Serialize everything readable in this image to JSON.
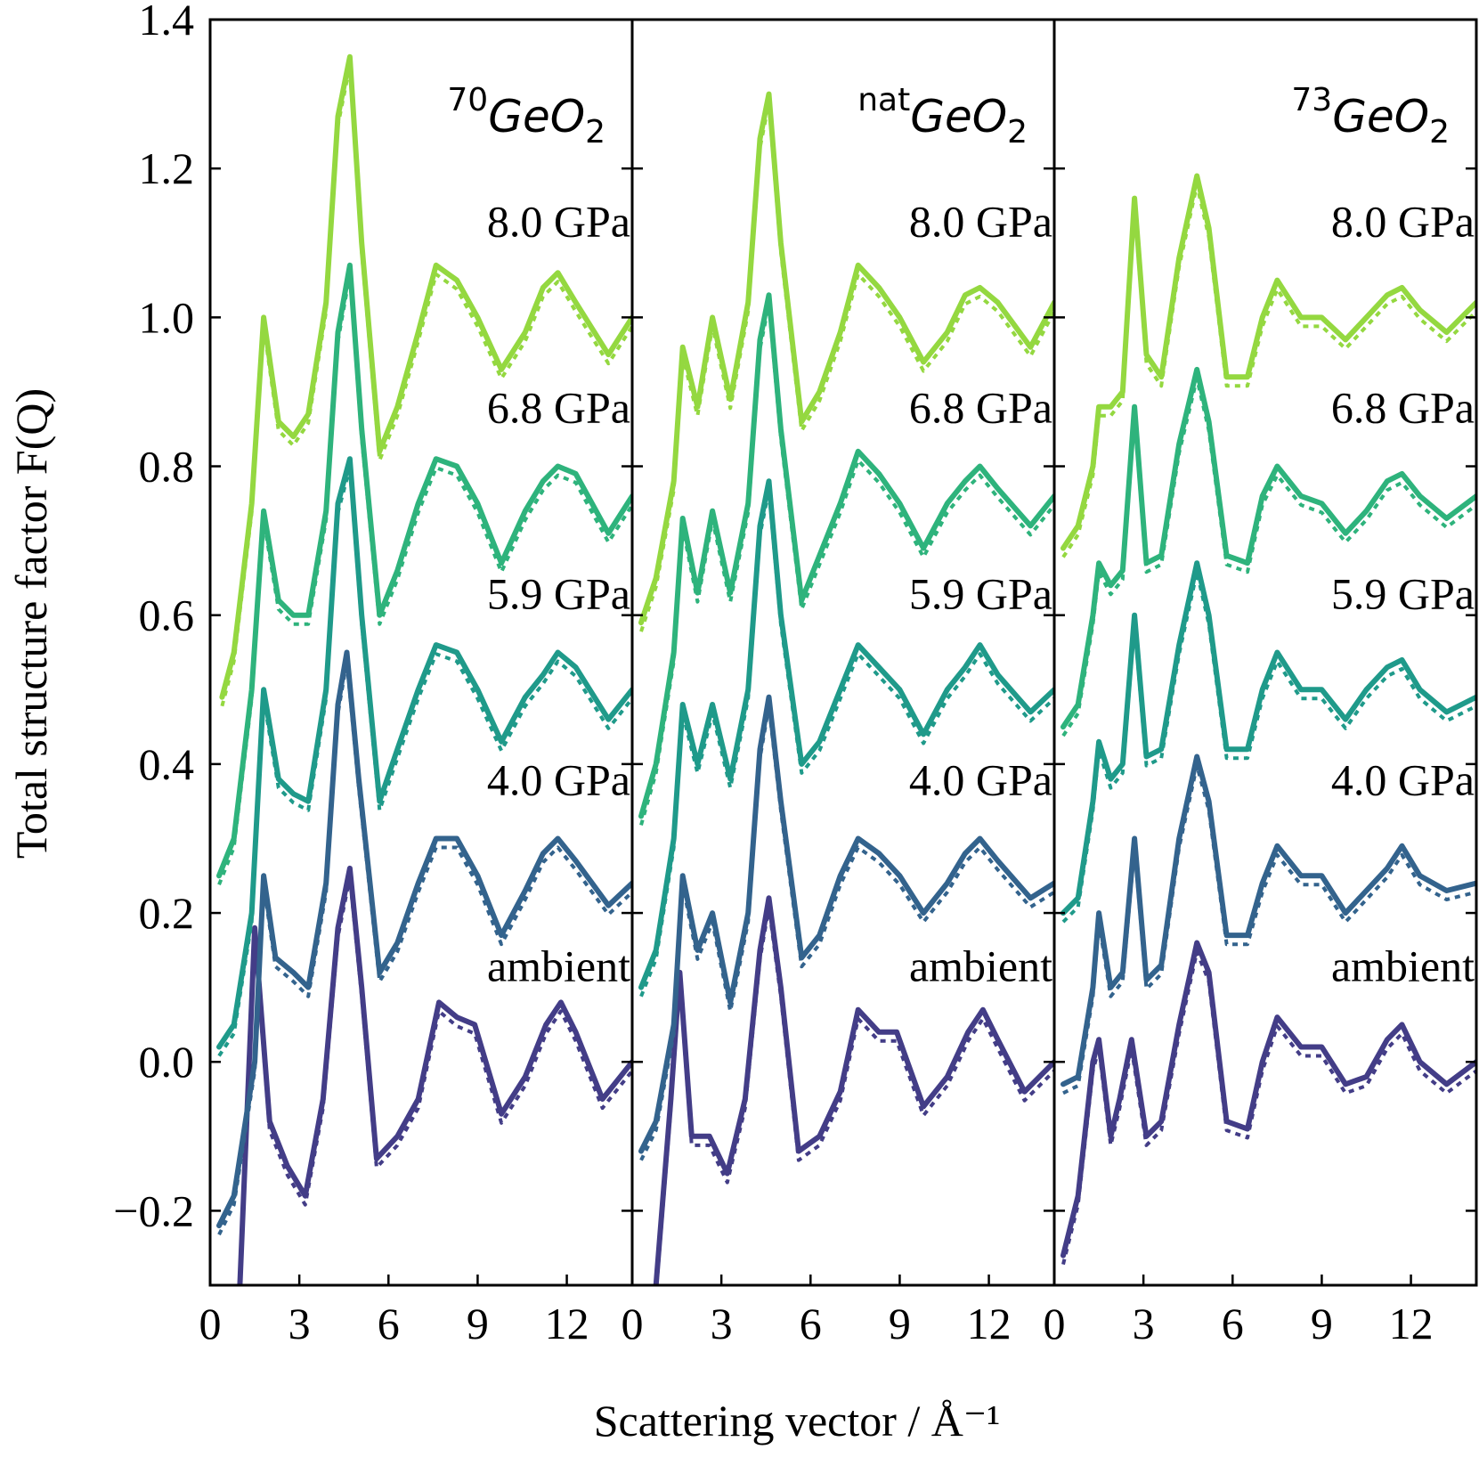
{
  "chart_data": {
    "type": "line",
    "ylabel": "Total structure factor F(Q)",
    "xlabel": "Scattering vector / Å⁻¹",
    "ylim": [
      -0.3,
      1.4
    ],
    "xlim": [
      0,
      14.2
    ],
    "y_ticks": [
      "−0.2",
      "0.0",
      "0.2",
      "0.4",
      "0.6",
      "0.8",
      "1.0",
      "1.2",
      "1.4"
    ],
    "x_ticks": [
      "0",
      "3",
      "6",
      "9",
      "12"
    ],
    "line_styles": [
      "solid (measured)",
      "dotted (model)"
    ],
    "colors": {
      "ambient": "#433d87",
      "4.0 GPa": "#33638d",
      "5.9 GPa": "#1f9a8a",
      "6.8 GPa": "#2eb37c",
      "8.0 GPa": "#94d840"
    },
    "pressure_labels": [
      "8.0 GPa",
      "6.8 GPa",
      "5.9 GPa",
      "4.0 GPa",
      "ambient"
    ],
    "panels": [
      {
        "title_sup": "70",
        "title_base": "GeO",
        "title_sub": "2",
        "series": [
          {
            "name": "ambient",
            "offset": 0.0,
            "x": [
              1.0,
              1.5,
              2.0,
              2.6,
              3.2,
              3.8,
              4.3,
              4.7,
              5.1,
              5.6,
              6.3,
              7.0,
              7.7,
              8.3,
              8.9,
              9.8,
              10.6,
              11.3,
              11.8,
              12.3,
              13.2,
              14.2
            ],
            "y": [
              -0.3,
              0.18,
              -0.08,
              -0.14,
              -0.18,
              -0.05,
              0.18,
              0.26,
              0.1,
              -0.13,
              -0.1,
              -0.05,
              0.08,
              0.06,
              0.05,
              -0.07,
              -0.02,
              0.05,
              0.08,
              0.04,
              -0.05,
              0.0
            ]
          },
          {
            "name": "4.0 GPa",
            "offset": 0.0,
            "x": [
              0.3,
              0.8,
              1.5,
              1.8,
              2.2,
              2.8,
              3.3,
              3.9,
              4.3,
              4.6,
              5.0,
              5.7,
              6.3,
              7.0,
              7.6,
              8.3,
              9.0,
              9.8,
              10.6,
              11.2,
              11.7,
              12.3,
              13.4,
              14.2
            ],
            "y": [
              -0.22,
              -0.18,
              0.0,
              0.25,
              0.14,
              0.12,
              0.1,
              0.24,
              0.48,
              0.55,
              0.38,
              0.12,
              0.16,
              0.24,
              0.3,
              0.3,
              0.25,
              0.17,
              0.23,
              0.28,
              0.3,
              0.27,
              0.21,
              0.24
            ]
          },
          {
            "name": "5.9 GPa",
            "offset": 0.0,
            "x": [
              0.3,
              0.8,
              1.4,
              1.8,
              2.3,
              2.8,
              3.3,
              3.9,
              4.3,
              4.7,
              5.1,
              5.7,
              6.3,
              7.0,
              7.6,
              8.3,
              9.0,
              9.8,
              10.6,
              11.2,
              11.7,
              12.3,
              13.4,
              14.2
            ],
            "y": [
              0.02,
              0.05,
              0.2,
              0.5,
              0.38,
              0.36,
              0.35,
              0.5,
              0.75,
              0.81,
              0.6,
              0.35,
              0.42,
              0.5,
              0.56,
              0.55,
              0.5,
              0.43,
              0.49,
              0.52,
              0.55,
              0.53,
              0.46,
              0.5
            ]
          },
          {
            "name": "6.8 GPa",
            "offset": 0.0,
            "x": [
              0.3,
              0.8,
              1.4,
              1.8,
              2.3,
              2.8,
              3.3,
              3.9,
              4.3,
              4.7,
              5.1,
              5.7,
              6.3,
              7.0,
              7.6,
              8.3,
              9.0,
              9.8,
              10.6,
              11.2,
              11.7,
              12.3,
              13.4,
              14.2
            ],
            "y": [
              0.25,
              0.3,
              0.5,
              0.74,
              0.62,
              0.6,
              0.6,
              0.74,
              0.98,
              1.07,
              0.85,
              0.6,
              0.66,
              0.75,
              0.81,
              0.8,
              0.75,
              0.67,
              0.74,
              0.78,
              0.8,
              0.79,
              0.71,
              0.76
            ]
          },
          {
            "name": "8.0 GPa",
            "offset": 0.0,
            "x": [
              0.4,
              0.8,
              1.4,
              1.8,
              2.3,
              2.8,
              3.3,
              3.9,
              4.3,
              4.7,
              5.1,
              5.7,
              6.3,
              7.0,
              7.6,
              8.3,
              9.0,
              9.8,
              10.6,
              11.2,
              11.7,
              12.3,
              13.4,
              14.2
            ],
            "y": [
              0.49,
              0.55,
              0.75,
              1.0,
              0.86,
              0.84,
              0.87,
              1.02,
              1.27,
              1.35,
              1.1,
              0.82,
              0.88,
              0.98,
              1.07,
              1.05,
              1.0,
              0.93,
              0.98,
              1.04,
              1.06,
              1.02,
              0.95,
              1.0
            ]
          }
        ]
      },
      {
        "title_sup": "nat",
        "title_base": "GeO",
        "title_sub": "2",
        "series": [
          {
            "name": "ambient",
            "offset": 0.0,
            "x": [
              0.8,
              1.3,
              1.6,
              2.0,
              2.6,
              3.2,
              3.8,
              4.3,
              4.6,
              5.0,
              5.6,
              6.3,
              7.0,
              7.6,
              8.3,
              8.9,
              9.8,
              10.6,
              11.3,
              11.8,
              12.3,
              13.2,
              14.2
            ],
            "y": [
              -0.3,
              -0.05,
              0.12,
              -0.1,
              -0.1,
              -0.15,
              -0.05,
              0.15,
              0.22,
              0.1,
              -0.12,
              -0.1,
              -0.04,
              0.07,
              0.04,
              0.04,
              -0.06,
              -0.02,
              0.04,
              0.07,
              0.03,
              -0.04,
              0.0
            ]
          },
          {
            "name": "4.0 GPa",
            "offset": 0.0,
            "x": [
              0.3,
              0.8,
              1.4,
              1.7,
              2.2,
              2.7,
              3.3,
              3.9,
              4.3,
              4.6,
              5.0,
              5.7,
              6.3,
              7.0,
              7.6,
              8.3,
              9.0,
              9.8,
              10.6,
              11.2,
              11.7,
              12.3,
              13.4,
              14.2
            ],
            "y": [
              -0.12,
              -0.08,
              0.05,
              0.25,
              0.15,
              0.2,
              0.08,
              0.2,
              0.42,
              0.49,
              0.35,
              0.14,
              0.17,
              0.25,
              0.3,
              0.28,
              0.25,
              0.2,
              0.24,
              0.28,
              0.3,
              0.27,
              0.22,
              0.24
            ]
          },
          {
            "name": "5.9 GPa",
            "offset": 0.0,
            "x": [
              0.3,
              0.8,
              1.4,
              1.7,
              2.2,
              2.7,
              3.3,
              3.9,
              4.3,
              4.6,
              5.0,
              5.7,
              6.3,
              7.0,
              7.6,
              8.3,
              9.0,
              9.8,
              10.6,
              11.2,
              11.7,
              12.3,
              13.4,
              14.2
            ],
            "y": [
              0.1,
              0.15,
              0.3,
              0.48,
              0.4,
              0.48,
              0.38,
              0.5,
              0.72,
              0.78,
              0.6,
              0.4,
              0.43,
              0.5,
              0.56,
              0.53,
              0.5,
              0.44,
              0.5,
              0.53,
              0.56,
              0.52,
              0.47,
              0.5
            ]
          },
          {
            "name": "6.8 GPa",
            "offset": 0.0,
            "x": [
              0.3,
              0.8,
              1.4,
              1.7,
              2.2,
              2.7,
              3.3,
              3.9,
              4.3,
              4.6,
              5.0,
              5.7,
              6.3,
              7.0,
              7.6,
              8.3,
              9.0,
              9.8,
              10.6,
              11.2,
              11.7,
              12.3,
              13.4,
              14.2
            ],
            "y": [
              0.33,
              0.4,
              0.55,
              0.73,
              0.63,
              0.74,
              0.63,
              0.75,
              0.97,
              1.03,
              0.85,
              0.62,
              0.68,
              0.75,
              0.82,
              0.79,
              0.75,
              0.69,
              0.75,
              0.78,
              0.8,
              0.77,
              0.72,
              0.76
            ]
          },
          {
            "name": "8.0 GPa",
            "offset": 0.0,
            "x": [
              0.3,
              0.8,
              1.4,
              1.7,
              2.2,
              2.7,
              3.3,
              3.9,
              4.3,
              4.6,
              5.0,
              5.7,
              6.3,
              7.0,
              7.6,
              8.3,
              9.0,
              9.8,
              10.6,
              11.2,
              11.7,
              12.3,
              13.4,
              14.2
            ],
            "y": [
              0.59,
              0.65,
              0.78,
              0.96,
              0.88,
              1.0,
              0.89,
              1.02,
              1.24,
              1.3,
              1.1,
              0.86,
              0.9,
              0.98,
              1.07,
              1.04,
              1.0,
              0.94,
              0.98,
              1.03,
              1.04,
              1.02,
              0.96,
              1.02
            ]
          }
        ]
      },
      {
        "title_sup": "73",
        "title_base": "GeO",
        "title_sub": "2",
        "series": [
          {
            "name": "ambient",
            "offset": 0.0,
            "x": [
              0.3,
              0.8,
              1.3,
              1.5,
              1.9,
              2.2,
              2.6,
              3.1,
              3.6,
              4.2,
              4.8,
              5.2,
              5.8,
              6.5,
              7.0,
              7.5,
              8.3,
              9.0,
              9.8,
              10.5,
              11.2,
              11.7,
              12.3,
              13.2,
              14.2
            ],
            "y": [
              -0.26,
              -0.18,
              0.0,
              0.03,
              -0.1,
              -0.05,
              0.03,
              -0.1,
              -0.08,
              0.05,
              0.16,
              0.12,
              -0.08,
              -0.09,
              0.0,
              0.06,
              0.02,
              0.02,
              -0.03,
              -0.02,
              0.03,
              0.05,
              0.0,
              -0.03,
              0.0
            ]
          },
          {
            "name": "4.0 GPa",
            "offset": 0.0,
            "x": [
              0.3,
              0.8,
              1.3,
              1.5,
              1.9,
              2.3,
              2.7,
              3.1,
              3.6,
              4.2,
              4.8,
              5.2,
              5.8,
              6.5,
              7.0,
              7.5,
              8.3,
              9.0,
              9.8,
              10.5,
              11.2,
              11.7,
              12.3,
              13.2,
              14.2
            ],
            "y": [
              -0.03,
              -0.02,
              0.1,
              0.2,
              0.1,
              0.12,
              0.3,
              0.11,
              0.13,
              0.3,
              0.41,
              0.35,
              0.17,
              0.17,
              0.24,
              0.29,
              0.25,
              0.25,
              0.2,
              0.23,
              0.26,
              0.29,
              0.25,
              0.23,
              0.24
            ]
          },
          {
            "name": "5.9 GPa",
            "offset": 0.0,
            "x": [
              0.3,
              0.8,
              1.3,
              1.5,
              1.9,
              2.3,
              2.7,
              3.1,
              3.6,
              4.2,
              4.8,
              5.2,
              5.8,
              6.5,
              7.0,
              7.5,
              8.3,
              9.0,
              9.8,
              10.5,
              11.2,
              11.7,
              12.3,
              13.2,
              14.2
            ],
            "y": [
              0.2,
              0.22,
              0.35,
              0.43,
              0.38,
              0.4,
              0.6,
              0.41,
              0.42,
              0.56,
              0.67,
              0.6,
              0.42,
              0.42,
              0.5,
              0.55,
              0.5,
              0.5,
              0.46,
              0.5,
              0.53,
              0.54,
              0.5,
              0.47,
              0.49
            ]
          },
          {
            "name": "6.8 GPa",
            "offset": 0.0,
            "x": [
              0.3,
              0.8,
              1.3,
              1.5,
              1.9,
              2.3,
              2.7,
              3.1,
              3.6,
              4.2,
              4.8,
              5.2,
              5.8,
              6.5,
              7.0,
              7.5,
              8.3,
              9.0,
              9.8,
              10.5,
              11.2,
              11.7,
              12.3,
              13.2,
              14.2
            ],
            "y": [
              0.45,
              0.48,
              0.6,
              0.67,
              0.64,
              0.66,
              0.88,
              0.67,
              0.68,
              0.83,
              0.93,
              0.86,
              0.68,
              0.67,
              0.76,
              0.8,
              0.76,
              0.75,
              0.71,
              0.74,
              0.78,
              0.79,
              0.76,
              0.73,
              0.76
            ]
          },
          {
            "name": "8.0 GPa",
            "offset": 0.0,
            "x": [
              0.3,
              0.8,
              1.3,
              1.5,
              1.9,
              2.3,
              2.7,
              3.1,
              3.6,
              4.2,
              4.8,
              5.2,
              5.8,
              6.5,
              7.0,
              7.5,
              8.3,
              9.0,
              9.8,
              10.5,
              11.2,
              11.7,
              12.3,
              13.2,
              14.2
            ],
            "y": [
              0.69,
              0.72,
              0.8,
              0.88,
              0.88,
              0.9,
              1.16,
              0.95,
              0.92,
              1.08,
              1.19,
              1.12,
              0.92,
              0.92,
              1.0,
              1.05,
              1.0,
              1.0,
              0.97,
              1.0,
              1.03,
              1.04,
              1.01,
              0.98,
              1.02
            ]
          }
        ]
      }
    ]
  }
}
